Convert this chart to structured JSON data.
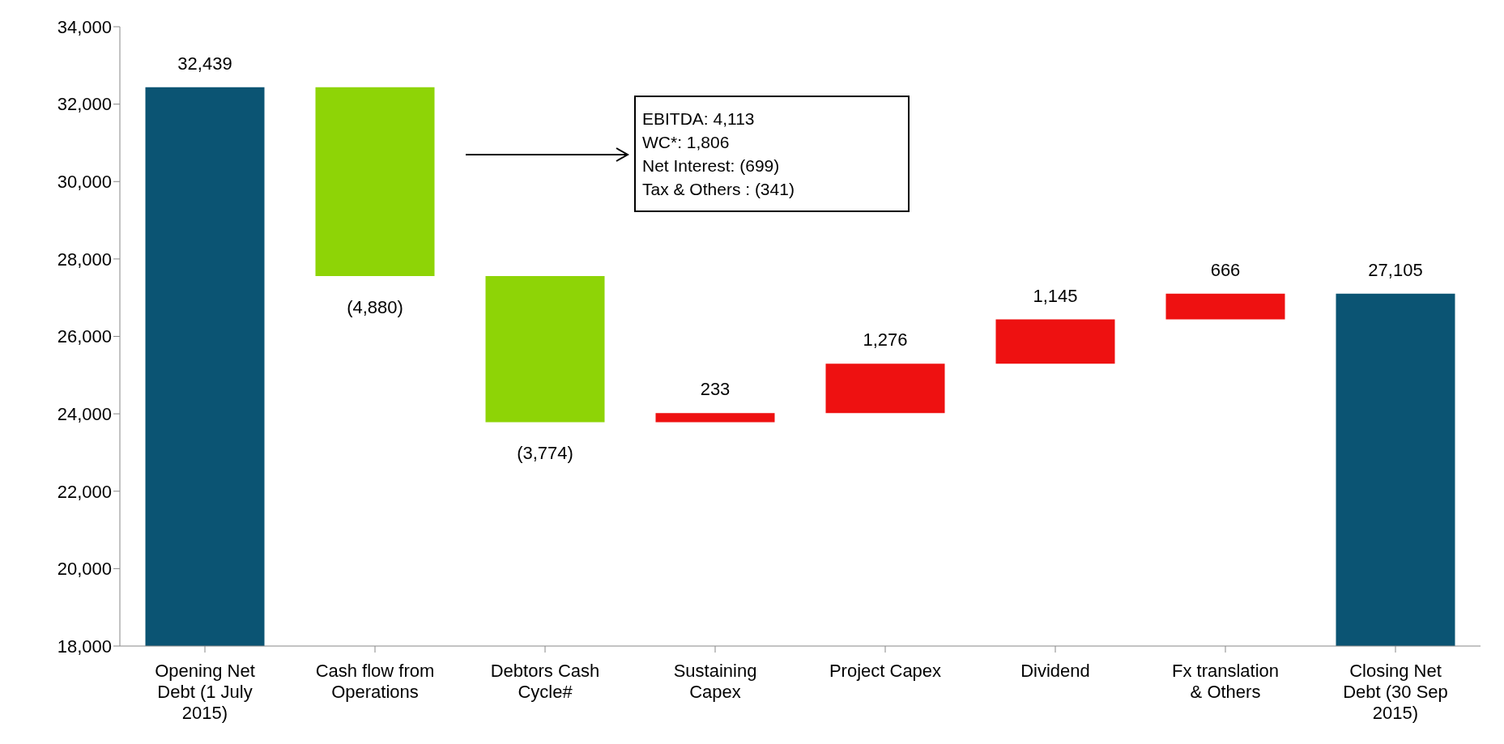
{
  "chart_data": {
    "type": "bar",
    "categories": [
      "Opening Net Debt (1 July 2015)",
      "Cash flow from Operations",
      "Debtors Cash Cycle#",
      "Sustaining Capex",
      "Project Capex",
      "Dividend",
      "Fx translation & Others",
      "Closing Net Debt (30 Sep 2015)"
    ],
    "values": [
      32439,
      -4880,
      -3774,
      233,
      1276,
      1145,
      666,
      27105
    ],
    "base": [
      0,
      32439,
      27559,
      23785,
      24018,
      25294,
      26439,
      0
    ],
    "colors": [
      "#0b5473",
      "#8ed406",
      "#8ed406",
      "#ee1111",
      "#ee1111",
      "#ee1111",
      "#ee1111",
      "#0b5473"
    ],
    "value_labels": [
      "32,439",
      "(4,880)",
      "(3,774)",
      "233",
      "1,276",
      "1,145",
      "666",
      "27,105"
    ],
    "ylim": [
      18000,
      34000
    ],
    "yticks": [
      {
        "value": 18000,
        "label": "18,000"
      },
      {
        "value": 20000,
        "label": "20,000"
      },
      {
        "value": 22000,
        "label": "22,000"
      },
      {
        "value": 24000,
        "label": "24,000"
      },
      {
        "value": 26000,
        "label": "26,000"
      },
      {
        "value": 28000,
        "label": "28,000"
      },
      {
        "value": 30000,
        "label": "30,000"
      },
      {
        "value": 32000,
        "label": "32,000"
      },
      {
        "value": 34000,
        "label": "34,000"
      }
    ],
    "grid": false,
    "annotations": [
      "EBITDA: 4,113",
      "WC*: 1,806",
      "Net Interest: (699)",
      "Tax & Others : (341)"
    ]
  }
}
